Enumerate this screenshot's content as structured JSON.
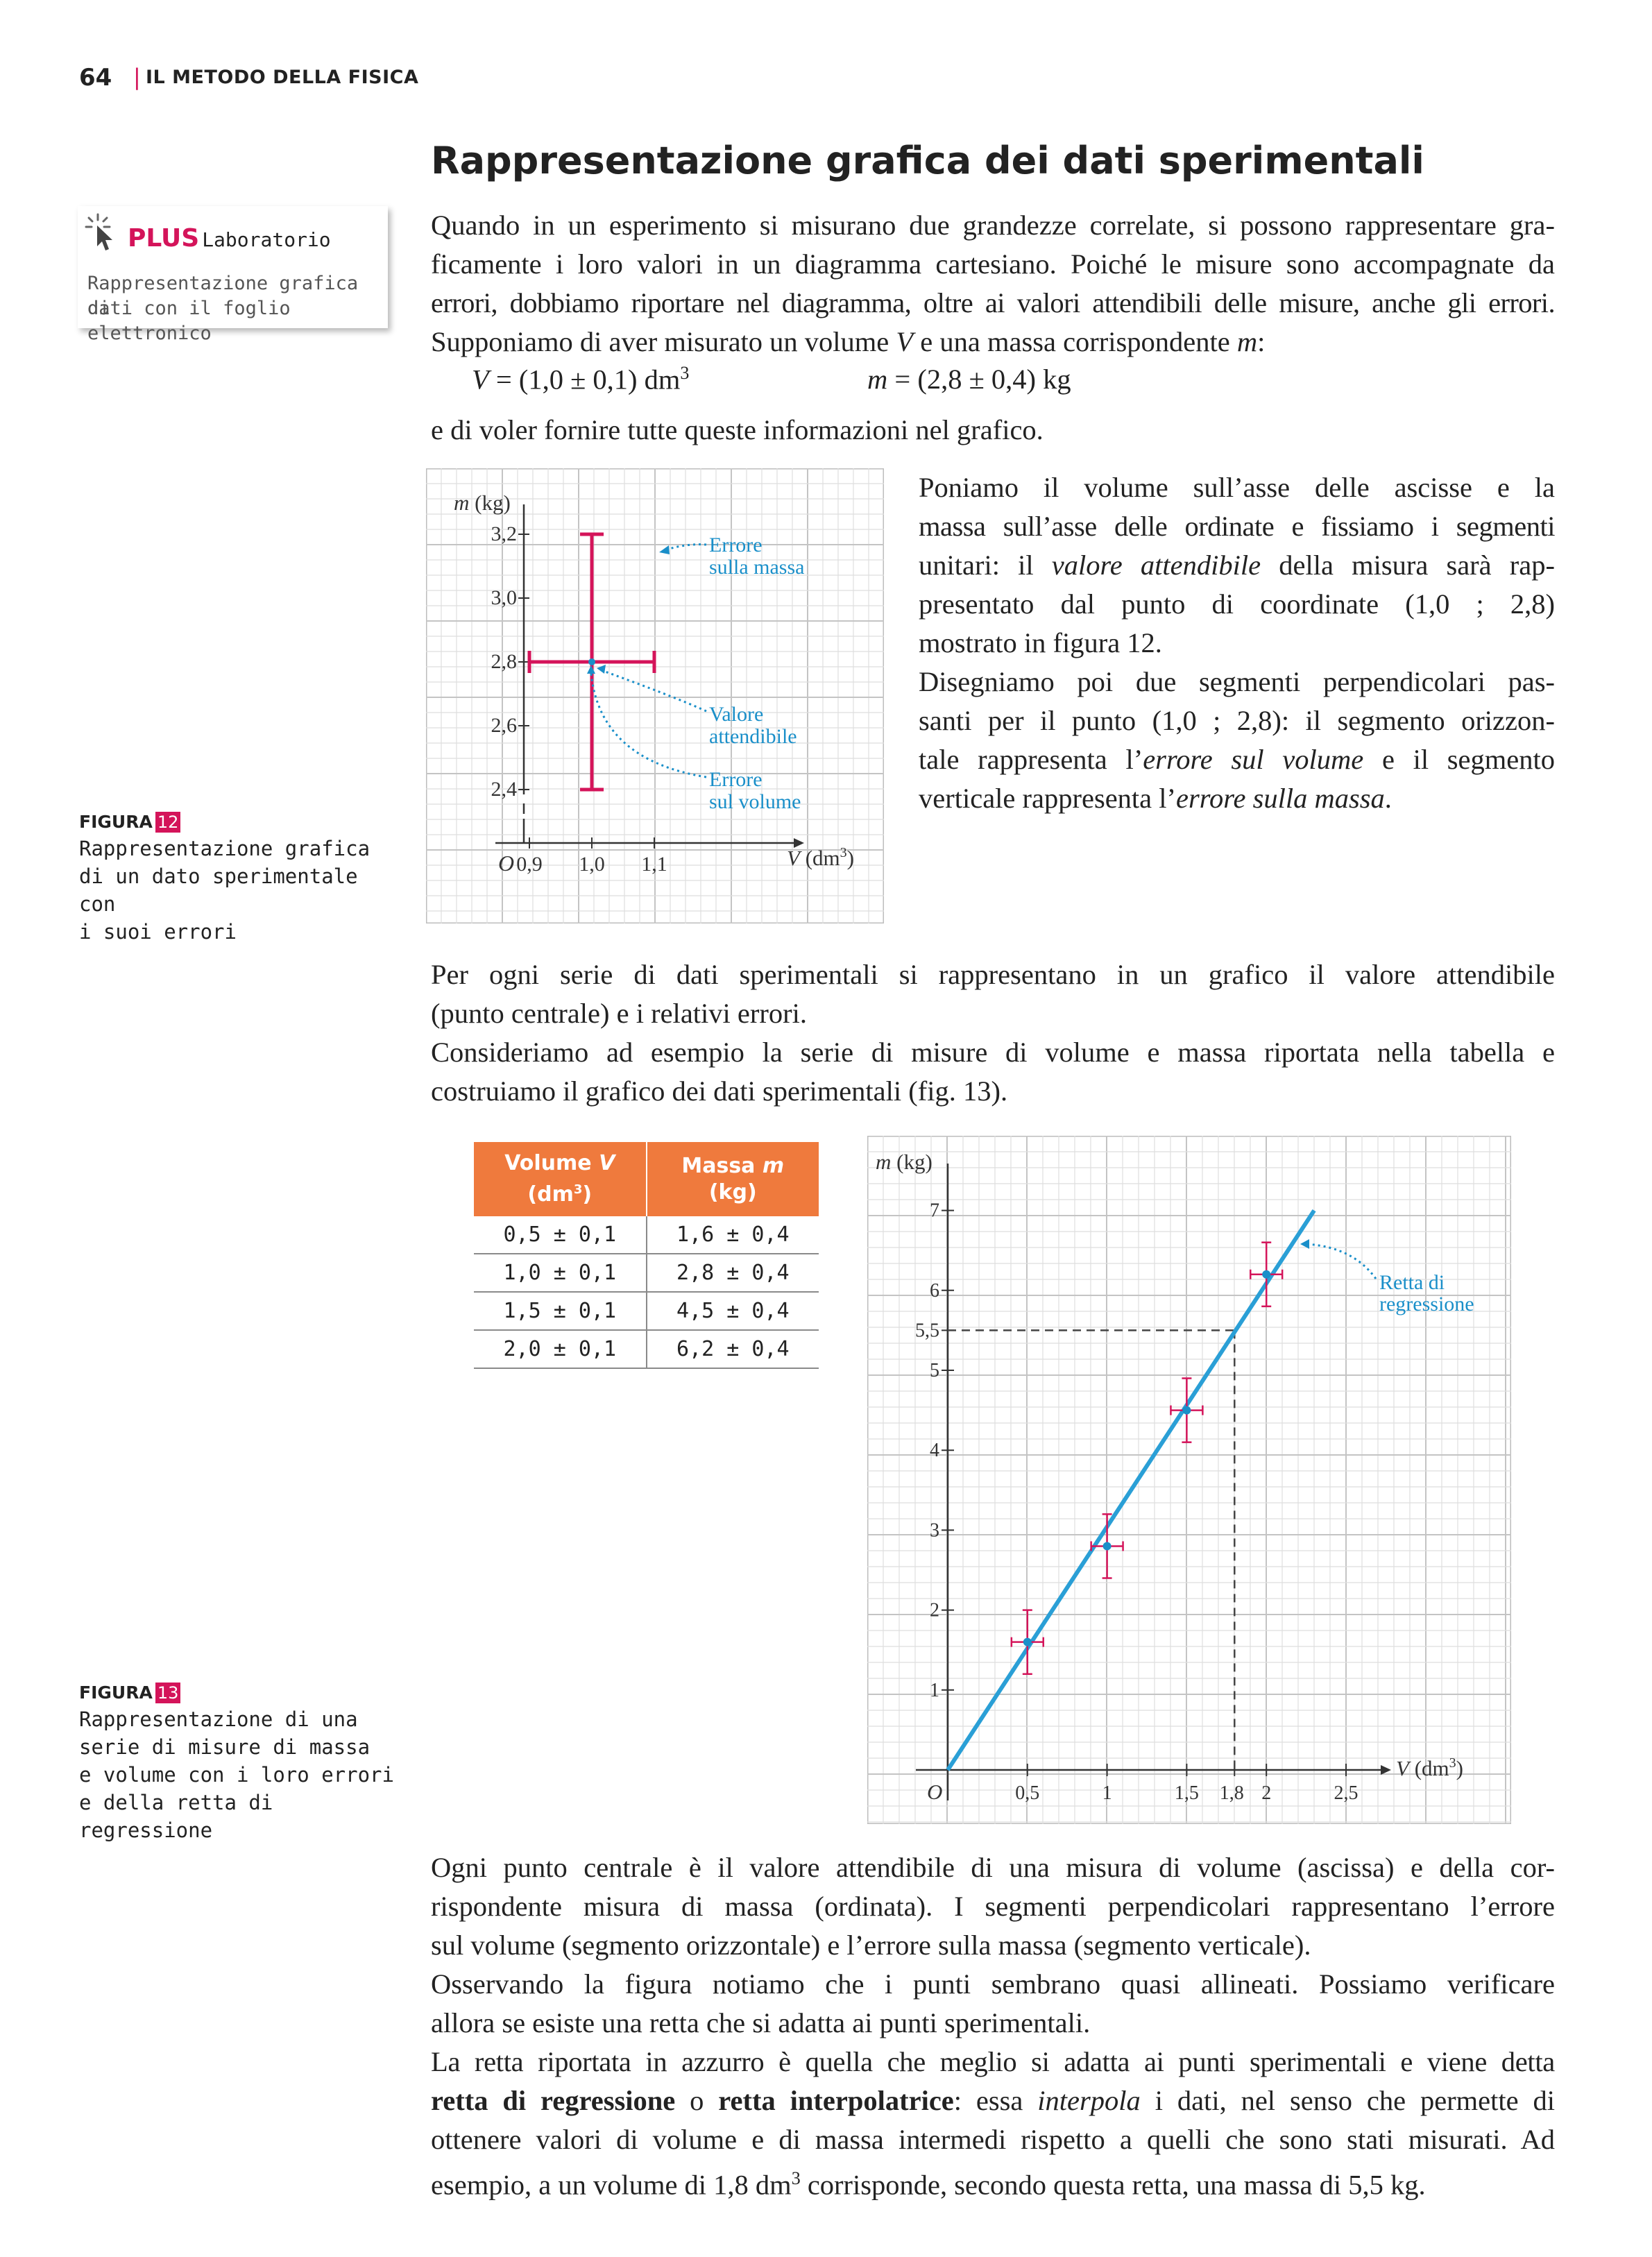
{
  "header": {
    "page_number": "64",
    "separator": "|",
    "section": "IL METODO DELLA FISICA"
  },
  "title": "Rappresentazione grafica dei dati sperimentali",
  "plus_box": {
    "plus": "PLUS",
    "label": "Laboratorio",
    "line1": "Rappresentazione grafica di",
    "line2": "dati con il foglio elettronico",
    "icon": "cursor-click-icon"
  },
  "intro": {
    "line1": "Quando in un esperimento si misurano due grandezze correlate, si possono rappresentare gra-",
    "line2": "ficamente i loro valori in un diagramma cartesiano. Poiché le misure sono accompagnate da",
    "line3": "errori, dobbiamo riportare nel diagramma, oltre ai valori attendibili delle misure, anche gli errori.",
    "line4_a": "Supponiamo di aver misurato un volume ",
    "line4_v": "V",
    "line4_b": " e una massa corrispondente ",
    "line4_m": "m",
    "line4_c": ":"
  },
  "formula": {
    "v_sym": "V",
    "v_rest": " = (1,0 ± 0,1) dm",
    "v_exp": "3",
    "m_sym": "m",
    "m_rest": " = (2,8 ± 0,4) kg"
  },
  "after_formula": "e di voler fornire tutte queste informazioni nel grafico.",
  "side_text": {
    "l1": "Poniamo il volume sull’asse delle ascisse e la",
    "l2": "massa sull’asse delle ordinate e fissiamo i segmenti",
    "l3a": "unitari: il ",
    "l3i": "valore attendibile",
    "l3b": " della misura sarà rap-",
    "l4": "presentato dal punto di coordinate (1,0 ; 2,8)",
    "l5": "mostrato in figura 12.",
    "l6": "Disegniamo poi due segmenti perpendicolari pas-",
    "l7": "santi per il punto (1,0 ; 2,8): il segmento orizzon-",
    "l8a": "tale rappresenta l’",
    "l8i": "errore sul volume",
    "l8b": " e il segmento",
    "l9a": "verticale rappresenta l’",
    "l9i": "errore sulla massa",
    "l9b": "."
  },
  "figure12_caption": {
    "label": "FIGURA",
    "num": "12",
    "line1": "Rappresentazione grafica",
    "line2": "di un dato sperimentale con",
    "line3": "i suoi errori"
  },
  "middle_text": {
    "l1": "Per ogni serie di dati sperimentali si rappresentano in un grafico il valore attendibile",
    "l2": "(punto centrale) e i relativi errori.",
    "l3": "Consideriamo ad esempio la serie di misure di volume e massa riportata nella tabella e",
    "l4": "costruiamo il grafico dei dati sperimentali (fig. 13)."
  },
  "table": {
    "h1a": "Volume ",
    "h1v": "V",
    "h1b": "(dm",
    "h1exp": "3",
    "h1c": ")",
    "h2a": "Massa ",
    "h2m": "m",
    "h2b": "(kg)",
    "rows": [
      [
        "0,5 ± 0,1",
        "1,6 ± 0,4"
      ],
      [
        "1,0 ± 0,1",
        "2,8 ± 0,4"
      ],
      [
        "1,5 ± 0,1",
        "4,5 ± 0,4"
      ],
      [
        "2,0 ± 0,1",
        "6,2 ± 0,4"
      ]
    ]
  },
  "figure13_caption": {
    "label": "FIGURA",
    "num": "13",
    "line1": "Rappresentazione di una",
    "line2": "serie di misure di massa",
    "line3": "e volume con i loro errori",
    "line4": "e della retta di regressione"
  },
  "bottom_text": {
    "l1": "Ogni punto centrale è il valore attendibile di una misura di volume (ascissa) e della cor-",
    "l2": "rispondente misura di massa (ordinata). I segmenti perpendicolari rappresentano l’errore",
    "l3": "sul volume (segmento orizzontale) e l’errore sulla massa (segmento verticale).",
    "l4": "Osservando la figura notiamo che i punti sembrano quasi allineati. Possiamo verificare",
    "l5": "allora se esiste una retta che si adatta ai punti sperimentali.",
    "l6": "La retta riportata in azzurro è quella che meglio si adatta ai punti sperimentali e viene detta",
    "l7b1": "retta di regressione",
    "l7o": " o ",
    "l7b2": "retta interpolatrice",
    "l7a": ": essa ",
    "l7i": "interpola",
    "l7c": " i dati, nel senso che permette di",
    "l8": "ottenere valori di volume e di massa intermedi rispetto a quelli che sono stati misurati. Ad",
    "l9a": "esempio, a un volume di 1,8 dm",
    "l9exp": "3",
    "l9b": " corrisponde, secondo questa retta, una massa di 5,5 kg."
  },
  "colors": {
    "accent": "#d4145a",
    "table_header": "#ef7a3d",
    "annotation": "#1a8fc9",
    "regression_line": "#2a9fd6",
    "error_bar": "#d4145a",
    "grid": "#d9d9d9"
  },
  "chart_data": [
    {
      "type": "scatter",
      "figure": "12",
      "xlabel_sym": "V",
      "xlabel_unit": " (dm",
      "xlabel_exp": "3",
      "xlabel_end": ")",
      "ylabel_sym": "m",
      "ylabel_unit": " (kg)",
      "origin": "O",
      "x_ticks": [
        "0,9",
        "1,0",
        "1,1"
      ],
      "y_ticks": [
        "2,4",
        "2,6",
        "2,8",
        "3,0",
        "3,2"
      ],
      "point": {
        "x": 1.0,
        "y": 2.8,
        "x_err": 0.1,
        "y_err": 0.4
      },
      "annotations": {
        "mass_error_1": "Errore",
        "mass_error_2": "sulla massa",
        "value_1": "Valore",
        "value_2": "attendibile",
        "volume_error_1": "Errore",
        "volume_error_2": "sul volume"
      },
      "grid": true
    },
    {
      "type": "scatter",
      "figure": "13",
      "xlabel_sym": "V",
      "xlabel_unit": " (dm",
      "xlabel_exp": "3",
      "xlabel_end": ")",
      "ylabel_sym": "m",
      "ylabel_unit": " (kg)",
      "origin": "O",
      "x_ticks": [
        "0,5",
        "1",
        "1,5",
        "1,8",
        "2",
        "2,5"
      ],
      "x_tick_values": [
        0.5,
        1,
        1.5,
        1.8,
        2,
        2.5
      ],
      "y_ticks": [
        "1",
        "2",
        "3",
        "4",
        "5",
        "5,5",
        "6",
        "7"
      ],
      "y_tick_values": [
        1,
        2,
        3,
        4,
        5,
        5.5,
        6,
        7
      ],
      "points": [
        {
          "x": 0.5,
          "y": 1.6,
          "x_err": 0.1,
          "y_err": 0.4
        },
        {
          "x": 1.0,
          "y": 2.8,
          "x_err": 0.1,
          "y_err": 0.4
        },
        {
          "x": 1.5,
          "y": 4.5,
          "x_err": 0.1,
          "y_err": 0.4
        },
        {
          "x": 2.0,
          "y": 6.2,
          "x_err": 0.1,
          "y_err": 0.4
        }
      ],
      "regression": {
        "x0": 0,
        "y0": 0,
        "x1": 2.3,
        "y1": 7.0
      },
      "dashed_guide": {
        "x": 1.8,
        "y": 5.5
      },
      "annotation_1": "Retta di",
      "annotation_2": "regressione",
      "xlim": [
        0,
        2.8
      ],
      "ylim": [
        0,
        7.5
      ],
      "grid": true
    }
  ]
}
